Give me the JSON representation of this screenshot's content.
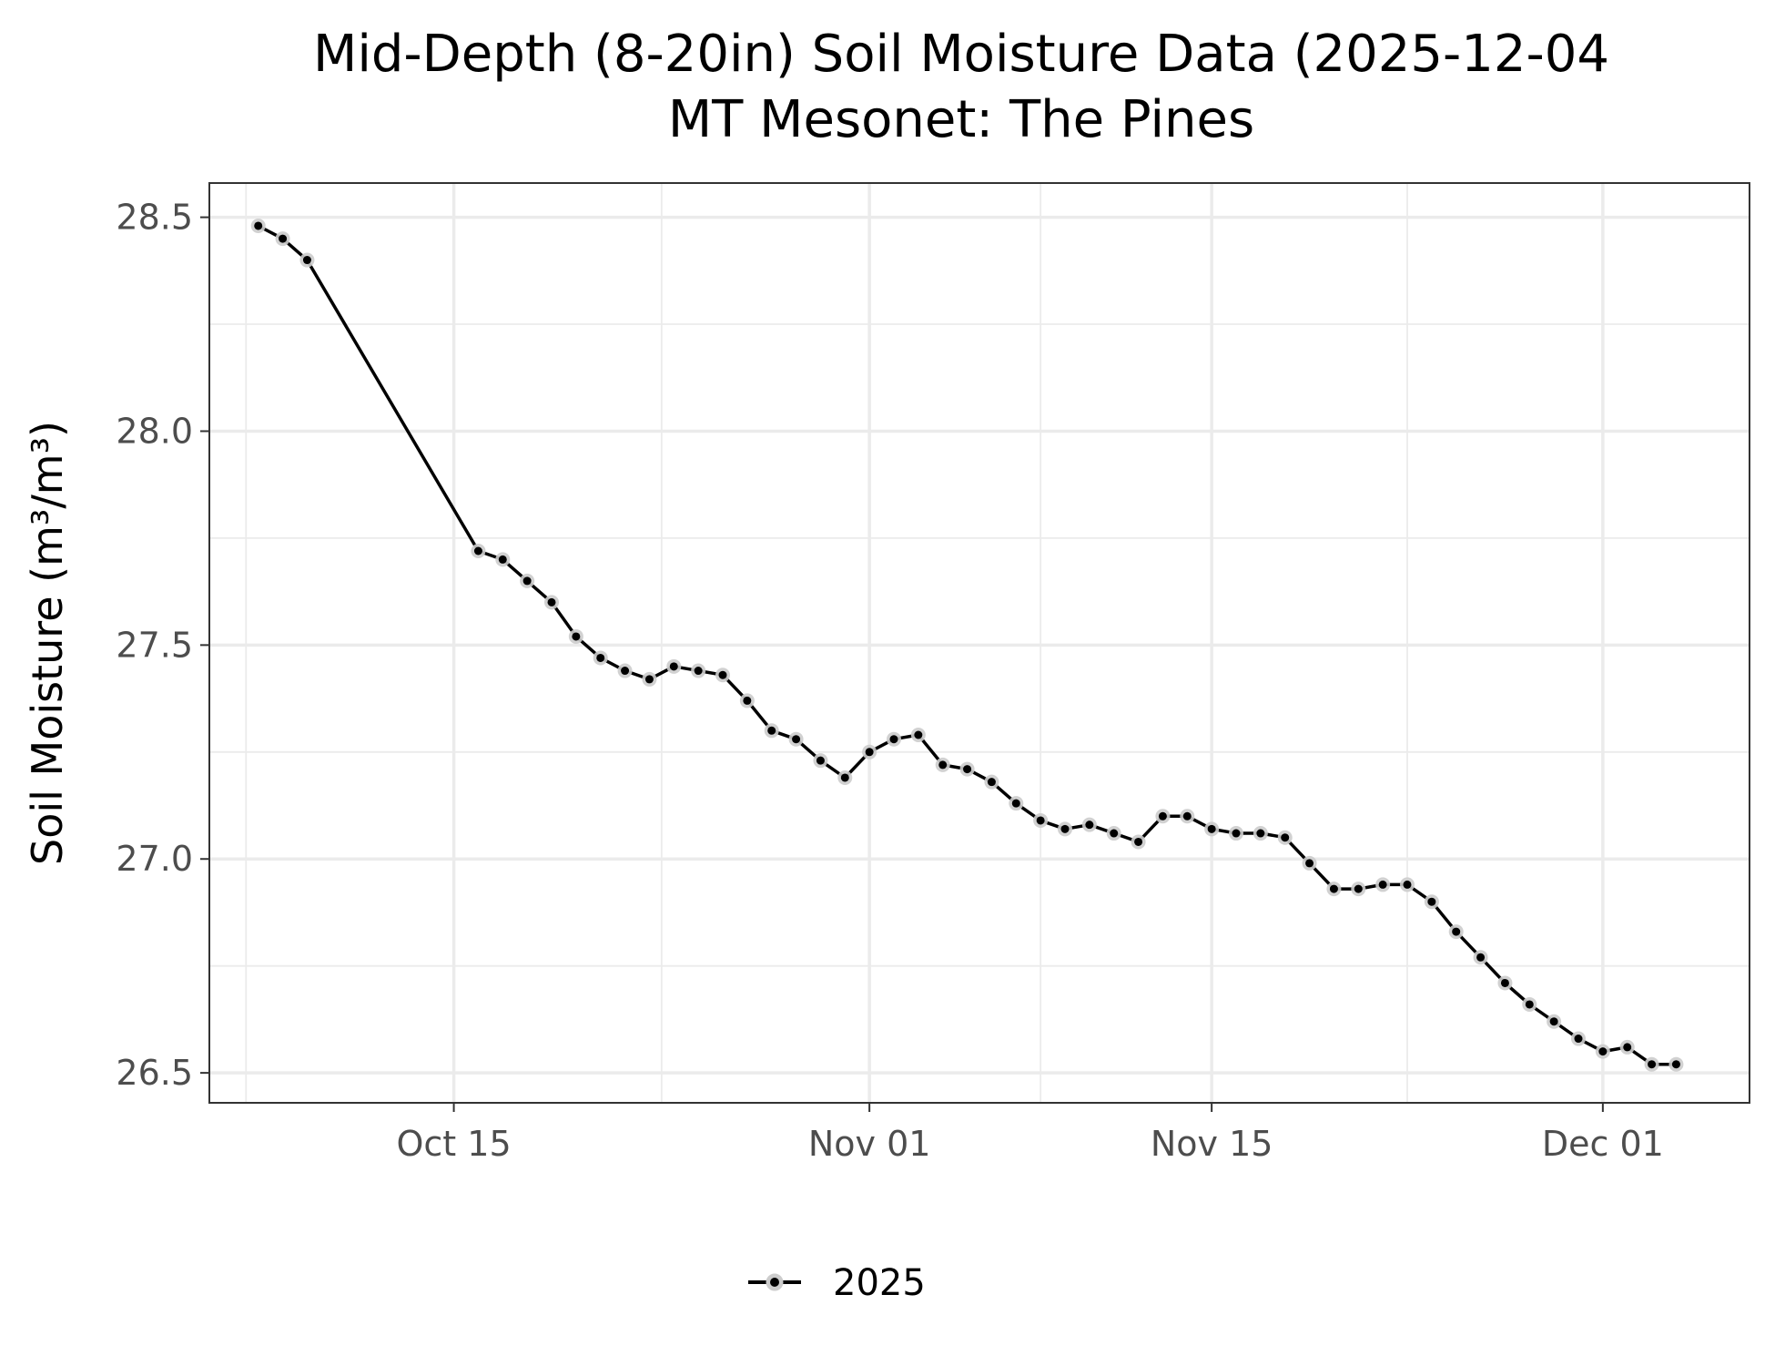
{
  "chart_data": {
    "type": "line",
    "title_line1": "Mid-Depth (8-20in) Soil Moisture Data (2025-12-04",
    "title_line2": "MT Mesonet: The Pines",
    "xlabel": "",
    "ylabel": "Soil Moisture (m³/m³)",
    "xlim": [
      "2025-10-05",
      "2025-12-07"
    ],
    "ylim": [
      26.43,
      28.58
    ],
    "x_ticks": [
      "2025-10-15",
      "2025-11-01",
      "2025-11-15",
      "2025-12-01"
    ],
    "x_tick_labels": [
      "Oct 15",
      "Nov 01",
      "Nov 15",
      "Dec 01"
    ],
    "y_ticks": [
      26.5,
      27.0,
      27.5,
      28.0,
      28.5
    ],
    "y_tick_labels": [
      "26.5",
      "27.0",
      "27.5",
      "28.0",
      "28.5"
    ],
    "grid": true,
    "legend_position": "bottom",
    "colors": {
      "line": "#000000",
      "halo": "#cccccc",
      "grid": "#ebebeb",
      "panel_border": "#333333"
    },
    "series": [
      {
        "name": "2025",
        "x": [
          "2025-10-07",
          "2025-10-08",
          "2025-10-09",
          "2025-10-16",
          "2025-10-17",
          "2025-10-18",
          "2025-10-19",
          "2025-10-20",
          "2025-10-21",
          "2025-10-22",
          "2025-10-23",
          "2025-10-24",
          "2025-10-25",
          "2025-10-26",
          "2025-10-27",
          "2025-10-28",
          "2025-10-29",
          "2025-10-30",
          "2025-10-31",
          "2025-11-01",
          "2025-11-02",
          "2025-11-03",
          "2025-11-04",
          "2025-11-05",
          "2025-11-06",
          "2025-11-07",
          "2025-11-08",
          "2025-11-09",
          "2025-11-10",
          "2025-11-11",
          "2025-11-12",
          "2025-11-13",
          "2025-11-14",
          "2025-11-15",
          "2025-11-16",
          "2025-11-17",
          "2025-11-18",
          "2025-11-19",
          "2025-11-20",
          "2025-11-21",
          "2025-11-22",
          "2025-11-23",
          "2025-11-24",
          "2025-11-25",
          "2025-11-26",
          "2025-11-27",
          "2025-11-28",
          "2025-11-29",
          "2025-11-30",
          "2025-12-01",
          "2025-12-02",
          "2025-12-03",
          "2025-12-04"
        ],
        "y": [
          28.48,
          28.45,
          28.4,
          27.72,
          27.7,
          27.65,
          27.6,
          27.52,
          27.47,
          27.44,
          27.42,
          27.45,
          27.44,
          27.43,
          27.37,
          27.3,
          27.28,
          27.23,
          27.19,
          27.25,
          27.28,
          27.29,
          27.22,
          27.21,
          27.18,
          27.13,
          27.09,
          27.07,
          27.08,
          27.06,
          27.04,
          27.1,
          27.1,
          27.07,
          27.06,
          27.06,
          27.05,
          26.99,
          26.93,
          26.93,
          26.94,
          26.94,
          26.9,
          26.83,
          26.77,
          26.71,
          26.66,
          26.62,
          26.58,
          26.55,
          26.56,
          26.52,
          26.52
        ]
      }
    ]
  }
}
